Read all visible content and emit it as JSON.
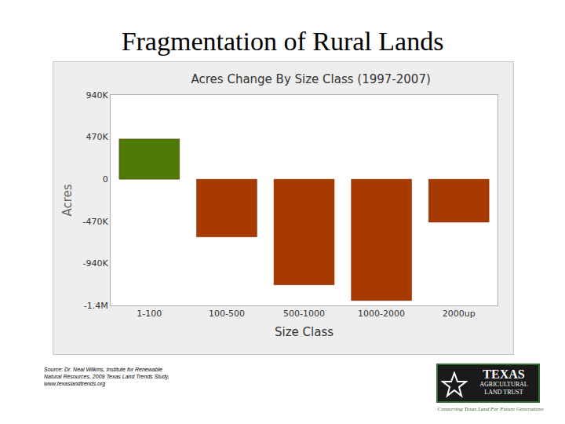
{
  "page": {
    "title": "Fragmentation of Rural Lands",
    "source": "Source: Dr. Neal Wilkins, Institute for Renewable Natural Resources, 2009 Texas Land Trends Study, www.texaslandtrends.org",
    "logo": {
      "lines": [
        "TEXAS",
        "AGRICULTURAL",
        "LAND TRUST"
      ],
      "tagline": "Conserving Texas Land For Future Generations"
    }
  },
  "chart_data": {
    "type": "bar",
    "title": "Acres Change By Size Class (1997-2007)",
    "x_label": "Size Class",
    "y_label": "Acres",
    "categories": [
      "1-100",
      "100-500",
      "500-1000",
      "1000-2000",
      "2000up"
    ],
    "values": [
      450000,
      -645000,
      -1180000,
      -1355000,
      -480000
    ],
    "colors": [
      "#4e7a08",
      "#a63a00",
      "#a63a00",
      "#a63a00",
      "#a63a00"
    ],
    "ylim": [
      -1410000,
      940000
    ],
    "yticks": [
      {
        "value": -1410000,
        "label": "-1.4M"
      },
      {
        "value": -940000,
        "label": "-940K"
      },
      {
        "value": -470000,
        "label": "-470K"
      },
      0,
      {
        "value": 470000,
        "label": "470K"
      },
      {
        "value": 940000,
        "label": "940K"
      }
    ],
    "grid": false,
    "data_labels": false
  }
}
